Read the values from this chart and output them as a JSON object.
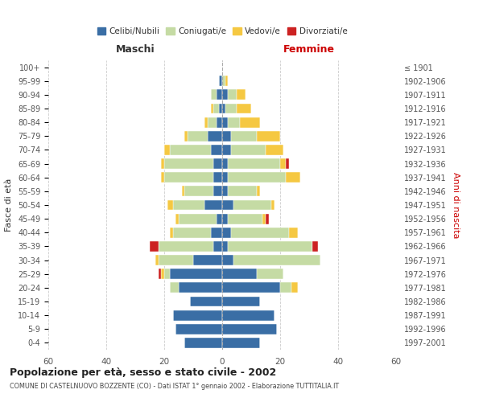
{
  "age_groups": [
    "0-4",
    "5-9",
    "10-14",
    "15-19",
    "20-24",
    "25-29",
    "30-34",
    "35-39",
    "40-44",
    "45-49",
    "50-54",
    "55-59",
    "60-64",
    "65-69",
    "70-74",
    "75-79",
    "80-84",
    "85-89",
    "90-94",
    "95-99",
    "100+"
  ],
  "birth_years": [
    "1997-2001",
    "1992-1996",
    "1987-1991",
    "1982-1986",
    "1977-1981",
    "1972-1976",
    "1967-1971",
    "1962-1966",
    "1957-1961",
    "1952-1956",
    "1947-1951",
    "1942-1946",
    "1937-1941",
    "1932-1936",
    "1927-1931",
    "1922-1926",
    "1917-1921",
    "1912-1916",
    "1907-1911",
    "1902-1906",
    "≤ 1901"
  ],
  "maschi_celibi": [
    13,
    16,
    17,
    11,
    15,
    18,
    10,
    3,
    4,
    2,
    6,
    3,
    3,
    3,
    4,
    5,
    2,
    1,
    2,
    1,
    0
  ],
  "maschi_coniugati": [
    0,
    0,
    0,
    0,
    3,
    2,
    12,
    19,
    13,
    13,
    11,
    10,
    17,
    17,
    14,
    7,
    3,
    2,
    2,
    0,
    0
  ],
  "maschi_vedovi": [
    0,
    0,
    0,
    0,
    0,
    1,
    1,
    0,
    1,
    1,
    2,
    1,
    1,
    1,
    2,
    1,
    1,
    1,
    0,
    0,
    0
  ],
  "maschi_divorziati": [
    0,
    0,
    0,
    0,
    0,
    1,
    0,
    3,
    0,
    0,
    0,
    0,
    0,
    0,
    0,
    0,
    0,
    0,
    0,
    0,
    0
  ],
  "femmine_celibi": [
    13,
    19,
    18,
    13,
    20,
    12,
    4,
    2,
    3,
    2,
    4,
    2,
    2,
    2,
    3,
    3,
    2,
    1,
    2,
    0,
    0
  ],
  "femmine_coniugati": [
    0,
    0,
    0,
    0,
    4,
    9,
    30,
    29,
    20,
    12,
    13,
    10,
    20,
    18,
    12,
    9,
    4,
    4,
    3,
    1,
    0
  ],
  "femmine_vedovi": [
    0,
    0,
    0,
    0,
    2,
    0,
    0,
    0,
    3,
    1,
    1,
    1,
    5,
    2,
    6,
    8,
    7,
    5,
    3,
    1,
    0
  ],
  "femmine_divorziati": [
    0,
    0,
    0,
    0,
    0,
    0,
    0,
    2,
    0,
    1,
    0,
    0,
    0,
    1,
    0,
    0,
    0,
    0,
    0,
    0,
    0
  ],
  "colors": {
    "celibi": "#3A6EA5",
    "coniugati": "#C5DBA4",
    "vedovi": "#F5C842",
    "divorziati": "#CC2222"
  },
  "title": "Popolazione per età, sesso e stato civile - 2002",
  "subtitle": "COMUNE DI CASTELNUOVO BOZZENTE (CO) - Dati ISTAT 1° gennaio 2002 - Elaborazione TUTTITALIA.IT",
  "xlabel_left": "Maschi",
  "xlabel_right": "Femmine",
  "ylabel_left": "Fasce di età",
  "ylabel_right": "Anni di nascita",
  "xlim": 60,
  "legend_labels": [
    "Celibi/Nubili",
    "Coniugati/e",
    "Vedovi/e",
    "Divorziati/e"
  ]
}
